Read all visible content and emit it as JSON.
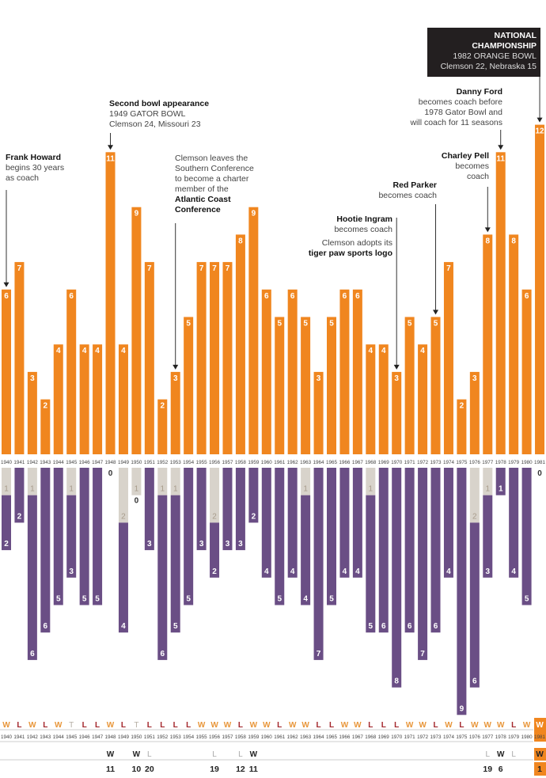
{
  "chart_data": {
    "type": "bar",
    "categories": [
      "1940",
      "1941",
      "1942",
      "1943",
      "1944",
      "1945",
      "1946",
      "1947",
      "1948",
      "1949",
      "1950",
      "1951",
      "1952",
      "1953",
      "1954",
      "1955",
      "1956",
      "1957",
      "1958",
      "1959",
      "1960",
      "1961",
      "1962",
      "1963",
      "1964",
      "1965",
      "1966",
      "1967",
      "1968",
      "1969",
      "1970",
      "1971",
      "1972",
      "1973",
      "1974",
      "1975",
      "1976",
      "1977",
      "1978",
      "1979",
      "1980",
      "1981"
    ],
    "series": [
      {
        "key": "wins",
        "values": [
          6,
          7,
          3,
          2,
          4,
          6,
          4,
          4,
          11,
          4,
          9,
          7,
          2,
          3,
          5,
          7,
          7,
          7,
          8,
          9,
          6,
          5,
          6,
          5,
          3,
          5,
          6,
          6,
          4,
          4,
          3,
          5,
          4,
          5,
          7,
          2,
          3,
          8,
          11,
          8,
          6,
          12
        ],
        "color": "#f0861f"
      },
      {
        "key": "ties",
        "values": [
          1,
          0,
          1,
          0,
          0,
          1,
          0,
          0,
          0,
          2,
          1,
          0,
          1,
          1,
          0,
          0,
          2,
          0,
          0,
          0,
          0,
          0,
          0,
          1,
          0,
          0,
          0,
          0,
          1,
          0,
          0,
          0,
          0,
          0,
          0,
          0,
          2,
          1,
          0,
          0,
          0,
          0
        ],
        "color": "#d8d3cb"
      },
      {
        "key": "losses",
        "values": [
          2,
          2,
          6,
          6,
          5,
          3,
          5,
          5,
          0,
          4,
          0,
          3,
          6,
          5,
          5,
          3,
          2,
          3,
          3,
          2,
          4,
          5,
          4,
          4,
          7,
          5,
          4,
          4,
          5,
          6,
          8,
          6,
          7,
          6,
          4,
          9,
          6,
          3,
          1,
          4,
          5,
          0
        ],
        "color": "#6a4e85"
      }
    ],
    "results": [
      "W",
      "L",
      "W",
      "L",
      "W",
      "T",
      "L",
      "L",
      "W",
      "L",
      "T",
      "L",
      "L",
      "L",
      "L",
      "W",
      "W",
      "W",
      "L",
      "W",
      "W",
      "L",
      "W",
      "W",
      "L",
      "L",
      "W",
      "W",
      "L",
      "L",
      "L",
      "W",
      "W",
      "L",
      "W",
      "L",
      "W",
      "W",
      "W",
      "L",
      "W",
      "W"
    ],
    "bowl": [
      "",
      "",
      "",
      "",
      "",
      "",
      "",
      "",
      "W",
      "",
      "W",
      "L",
      "",
      "",
      "",
      "",
      "L",
      "",
      "L",
      "W",
      "",
      "",
      "",
      "",
      "",
      "",
      "",
      "",
      "",
      "",
      "",
      "",
      "",
      "",
      "",
      "",
      "",
      "L",
      "W",
      "L",
      "",
      "W"
    ],
    "rank": [
      "",
      "",
      "",
      "",
      "",
      "",
      "",
      "",
      "11",
      "",
      "10",
      "20",
      "",
      "",
      "",
      "",
      "19",
      "",
      "12",
      "11",
      "",
      "",
      "",
      "",
      "",
      "",
      "",
      "",
      "",
      "",
      "",
      "",
      "",
      "",
      "",
      "",
      "",
      "19",
      "6",
      "",
      "",
      "1"
    ],
    "highlight_year": "1981",
    "colors": {
      "win_letter": "#e8963a",
      "loss_letter": "#a3262b",
      "tie_letter": "#b5aea4",
      "bowl_loss": "#aaaaaa",
      "highlight": "#f0861f"
    }
  },
  "annotations": {
    "frank": {
      "title": "Frank Howard",
      "lines": [
        "begins 30 years",
        "as coach"
      ]
    },
    "bowl2": {
      "title": "Second bowl appearance",
      "lines": [
        "1949 GATOR BOWL",
        "Clemson 24,  Missouri 23"
      ]
    },
    "acc": {
      "lines": [
        "Clemson leaves the",
        "Southern Conference",
        "to become a charter",
        "member of the"
      ],
      "bold": [
        "Atlantic Coast",
        "Conference"
      ]
    },
    "hootie": {
      "title": "Hootie Ingram",
      "lines": [
        "becomes coach"
      ],
      "extra": "Clemson adopts its",
      "extra_bold": "tiger paw sports logo"
    },
    "parker": {
      "title": "Red Parker",
      "lines": [
        "becomes coach"
      ]
    },
    "pell": {
      "title": "Charley Pell",
      "lines": [
        "becomes",
        "coach"
      ]
    },
    "ford": {
      "title": "Danny Ford",
      "lines": [
        "becomes coach before",
        "1978 Gator Bowl and",
        "will coach for 11 seasons"
      ]
    },
    "champ": {
      "title1": "NATIONAL",
      "title2": "CHAMPIONSHIP",
      "line1": "1982 ORANGE BOWL",
      "line2": "Clemson 22, Nebraska 15"
    }
  }
}
